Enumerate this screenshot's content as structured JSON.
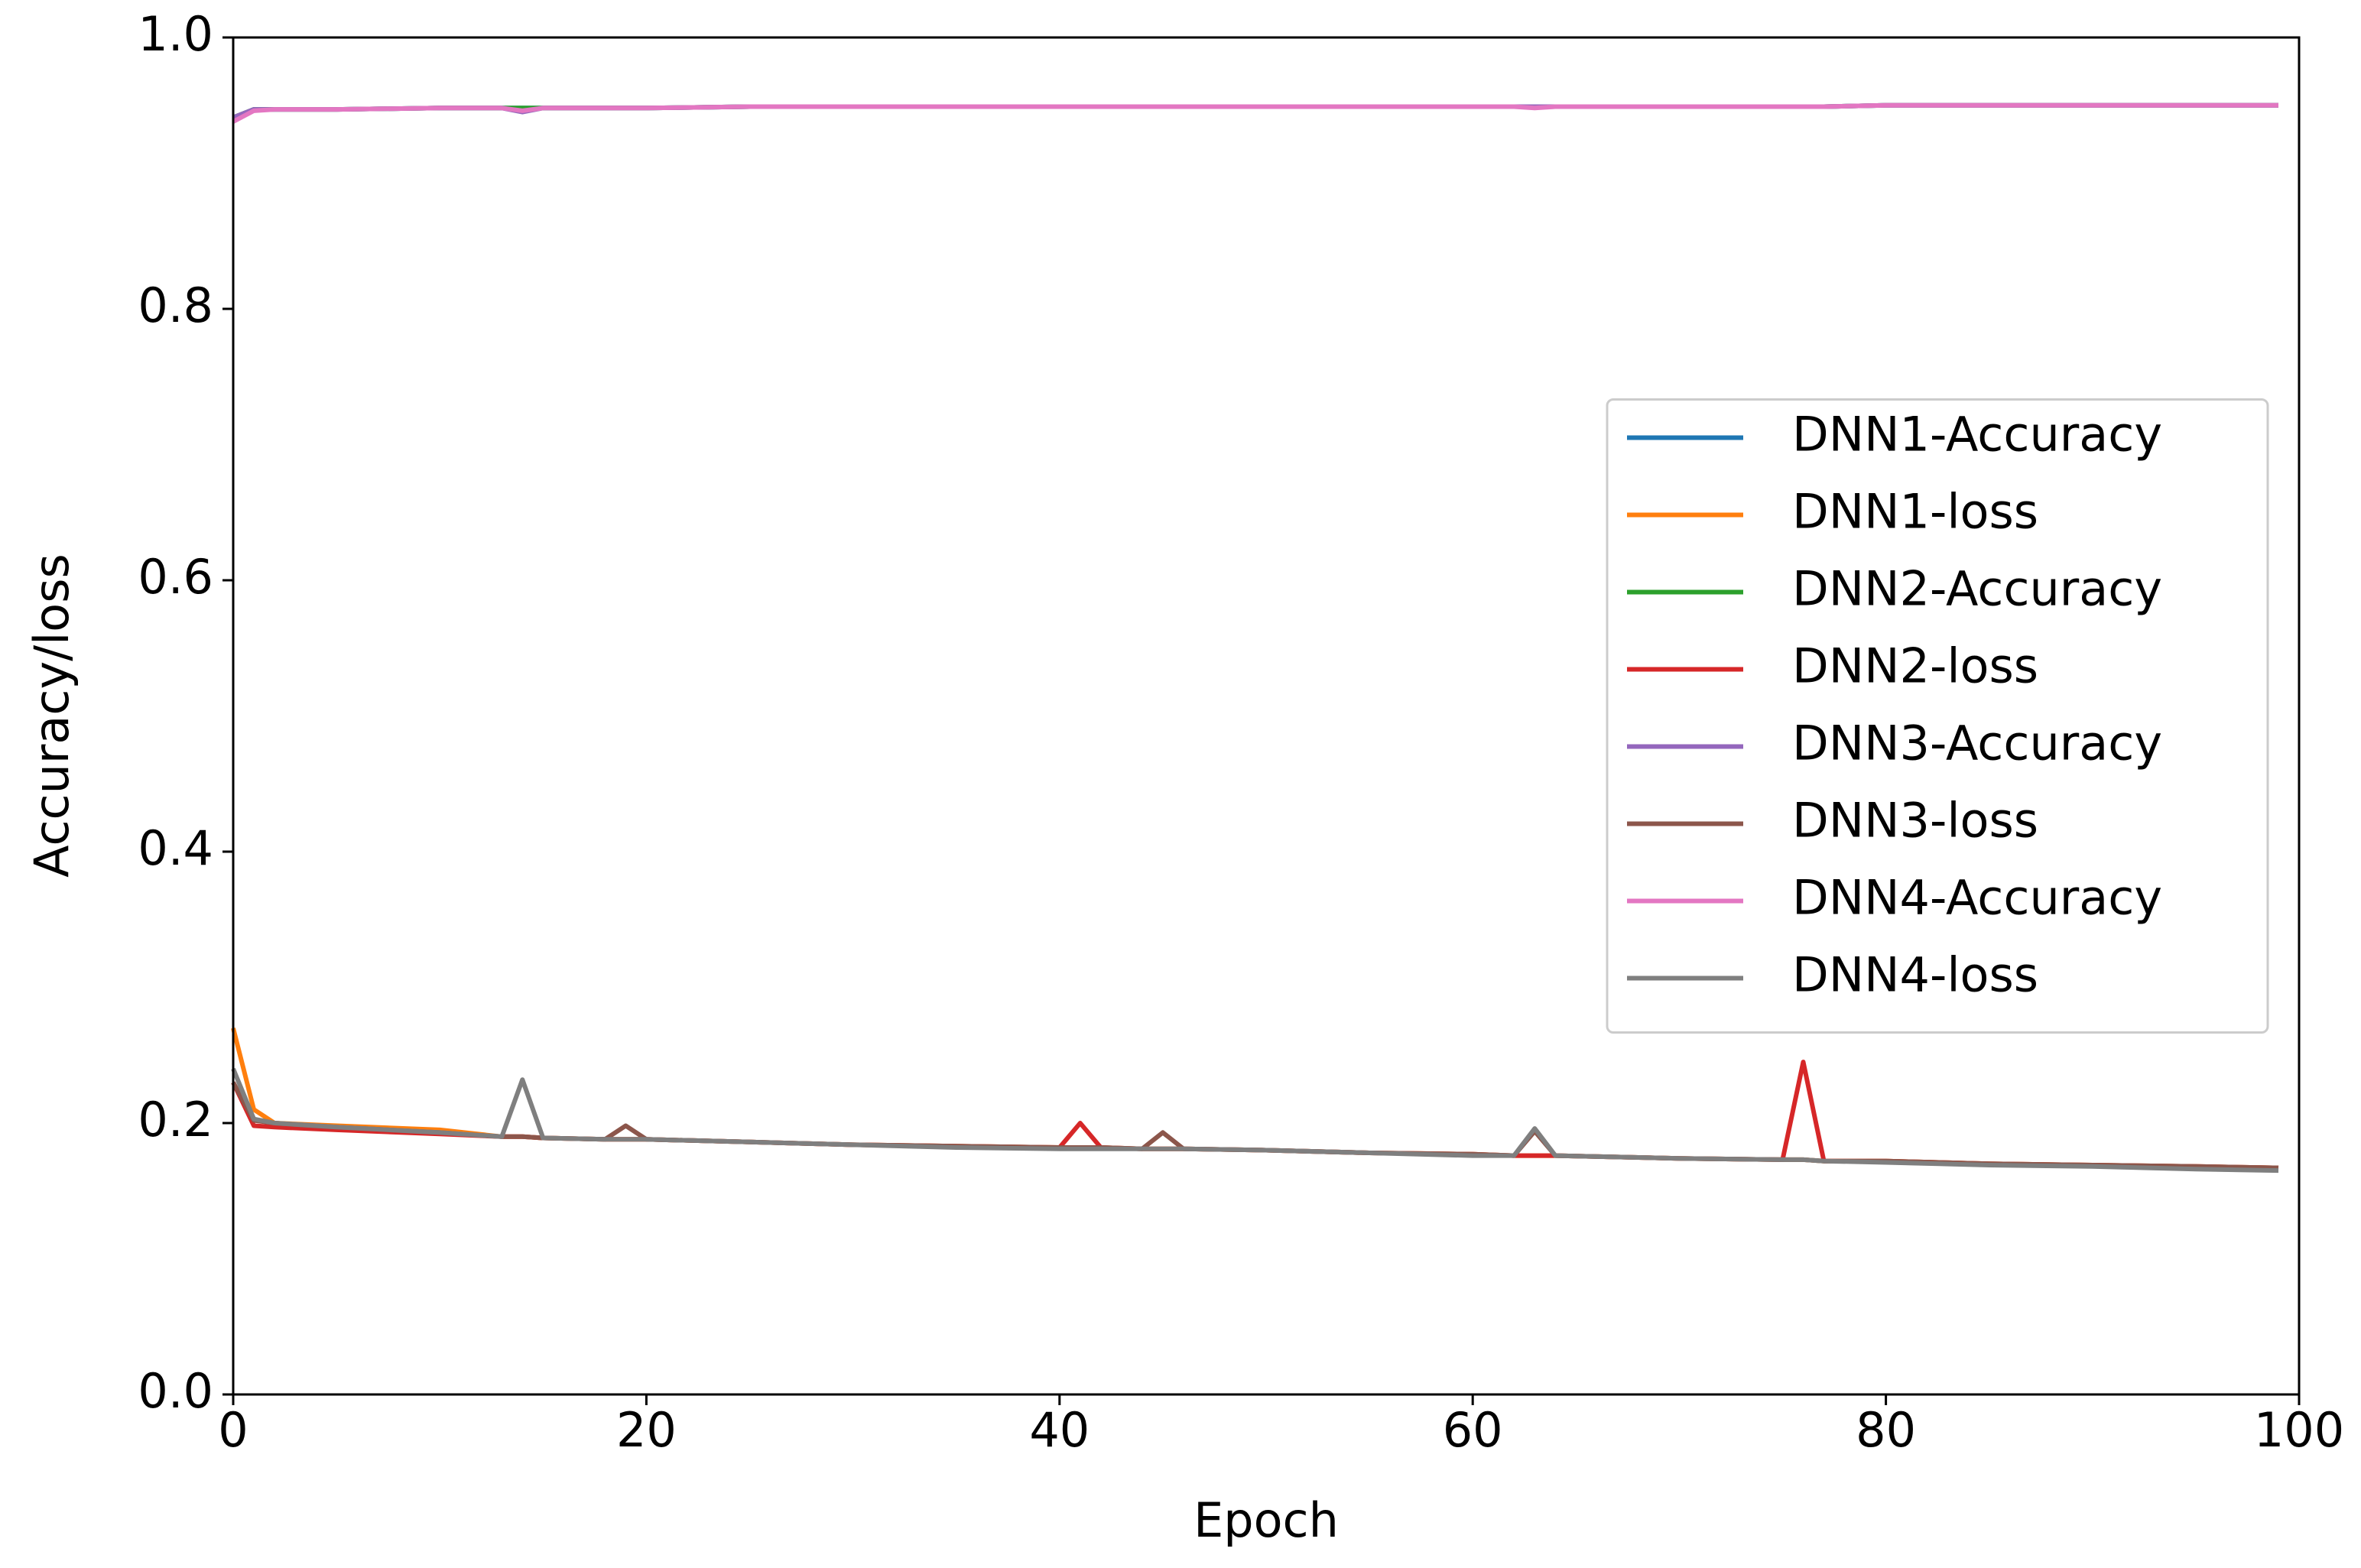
{
  "chart_data": {
    "type": "line",
    "x_label": "Epoch",
    "y_label": "Accuracy/loss",
    "x": [
      0,
      1,
      2,
      5,
      10,
      13,
      14,
      15,
      18,
      19,
      20,
      25,
      30,
      35,
      40,
      41,
      42,
      44,
      45,
      46,
      50,
      55,
      60,
      62,
      63,
      64,
      70,
      75,
      76,
      77,
      80,
      85,
      90,
      95,
      99
    ],
    "xlim": [
      0,
      100
    ],
    "xticks": [
      0,
      20,
      40,
      60,
      80,
      100
    ],
    "ylim": [
      0,
      1
    ],
    "yticks": [
      {
        "value": 0,
        "label": "0.0"
      },
      0.2,
      0.4,
      0.6,
      0.8,
      {
        "value": 1,
        "label": "1.0"
      }
    ],
    "grid": false,
    "legend": "right",
    "series": [
      {
        "name": "DNN1-Accuracy",
        "color": "#1f77b4",
        "values": [
          0.94,
          0.947,
          0.947,
          0.947,
          0.948,
          0.948,
          0.948,
          0.948,
          0.948,
          0.948,
          0.948,
          0.949,
          0.949,
          0.949,
          0.949,
          0.949,
          0.949,
          0.949,
          0.949,
          0.949,
          0.949,
          0.949,
          0.949,
          0.949,
          0.949,
          0.949,
          0.949,
          0.949,
          0.949,
          0.949,
          0.95,
          0.95,
          0.95,
          0.95,
          0.95
        ]
      },
      {
        "name": "DNN1-loss",
        "color": "#ff7f0e",
        "values": [
          0.27,
          0.21,
          0.2,
          0.198,
          0.195,
          0.19,
          0.19,
          0.189,
          0.188,
          0.188,
          0.188,
          0.186,
          0.184,
          0.183,
          0.182,
          0.182,
          0.182,
          0.181,
          0.181,
          0.181,
          0.18,
          0.178,
          0.177,
          0.176,
          0.176,
          0.176,
          0.174,
          0.173,
          0.173,
          0.172,
          0.172,
          0.17,
          0.169,
          0.168,
          0.167
        ]
      },
      {
        "name": "DNN2-Accuracy",
        "color": "#2ca02c",
        "values": [
          0.941,
          0.947,
          0.947,
          0.947,
          0.948,
          0.948,
          0.948,
          0.948,
          0.948,
          0.948,
          0.948,
          0.949,
          0.949,
          0.949,
          0.949,
          0.949,
          0.949,
          0.949,
          0.949,
          0.949,
          0.949,
          0.949,
          0.949,
          0.949,
          0.949,
          0.949,
          0.949,
          0.949,
          0.949,
          0.949,
          0.95,
          0.95,
          0.95,
          0.95,
          0.95
        ]
      },
      {
        "name": "DNN2-loss",
        "color": "#d62728",
        "values": [
          0.23,
          0.198,
          0.197,
          0.195,
          0.192,
          0.19,
          0.19,
          0.189,
          0.188,
          0.188,
          0.188,
          0.186,
          0.184,
          0.183,
          0.182,
          0.2,
          0.182,
          0.181,
          0.181,
          0.181,
          0.18,
          0.178,
          0.177,
          0.176,
          0.176,
          0.176,
          0.174,
          0.173,
          0.245,
          0.172,
          0.172,
          0.17,
          0.169,
          0.168,
          0.167
        ]
      },
      {
        "name": "DNN3-Accuracy",
        "color": "#9467bd",
        "values": [
          0.941,
          0.947,
          0.947,
          0.947,
          0.948,
          0.948,
          0.945,
          0.948,
          0.948,
          0.948,
          0.948,
          0.949,
          0.949,
          0.949,
          0.949,
          0.949,
          0.949,
          0.949,
          0.949,
          0.949,
          0.949,
          0.949,
          0.949,
          0.949,
          0.949,
          0.949,
          0.949,
          0.949,
          0.949,
          0.949,
          0.95,
          0.95,
          0.95,
          0.95,
          0.95
        ]
      },
      {
        "name": "DNN3-loss",
        "color": "#8c564b",
        "values": [
          0.23,
          0.202,
          0.2,
          0.197,
          0.193,
          0.19,
          0.19,
          0.189,
          0.188,
          0.198,
          0.188,
          0.186,
          0.184,
          0.183,
          0.182,
          0.182,
          0.182,
          0.181,
          0.193,
          0.181,
          0.18,
          0.178,
          0.177,
          0.176,
          0.194,
          0.176,
          0.174,
          0.173,
          0.173,
          0.172,
          0.172,
          0.17,
          0.169,
          0.168,
          0.167
        ]
      },
      {
        "name": "DNN4-Accuracy",
        "color": "#e377c2",
        "values": [
          0.938,
          0.946,
          0.947,
          0.947,
          0.948,
          0.948,
          0.946,
          0.948,
          0.948,
          0.948,
          0.948,
          0.949,
          0.949,
          0.949,
          0.949,
          0.949,
          0.949,
          0.949,
          0.949,
          0.949,
          0.949,
          0.949,
          0.949,
          0.949,
          0.948,
          0.949,
          0.949,
          0.949,
          0.949,
          0.949,
          0.95,
          0.95,
          0.95,
          0.95,
          0.95
        ]
      },
      {
        "name": "DNN4-loss",
        "color": "#7f7f7f",
        "values": [
          0.24,
          0.203,
          0.2,
          0.197,
          0.193,
          0.19,
          0.232,
          0.189,
          0.188,
          0.188,
          0.188,
          0.186,
          0.184,
          0.182,
          0.181,
          0.181,
          0.181,
          0.181,
          0.181,
          0.181,
          0.18,
          0.178,
          0.176,
          0.176,
          0.196,
          0.176,
          0.174,
          0.173,
          0.173,
          0.172,
          0.171,
          0.169,
          0.168,
          0.166,
          0.165
        ]
      }
    ]
  }
}
